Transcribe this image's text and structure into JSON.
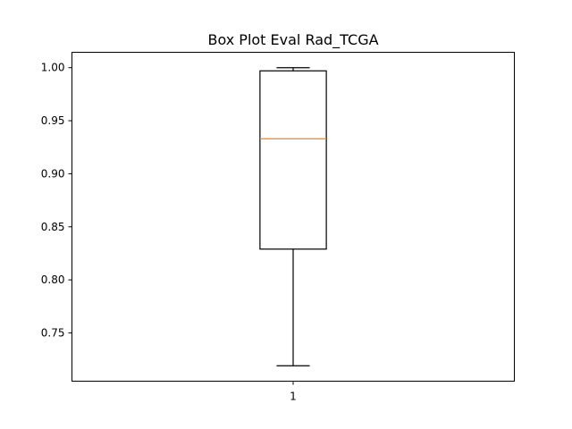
{
  "chart_data": {
    "type": "box",
    "title": "Box Plot Eval Rad_TCGA",
    "xlabel": "",
    "ylabel": "",
    "categories": [
      "1"
    ],
    "ylim": [
      0.7045,
      1.0145
    ],
    "yticks": [
      0.75,
      0.8,
      0.85,
      0.9,
      0.95,
      1.0
    ],
    "ytick_labels": [
      "0.75",
      "0.80",
      "0.85",
      "0.90",
      "0.95",
      "1.00"
    ],
    "grid": false,
    "series": [
      {
        "whisker_low": 0.719,
        "q1": 0.829,
        "median": 0.933,
        "q3": 0.997,
        "whisker_high": 1.0
      }
    ],
    "colors": {
      "box": "#000000",
      "median": "#ff7f0e",
      "axes": "#000000"
    }
  }
}
